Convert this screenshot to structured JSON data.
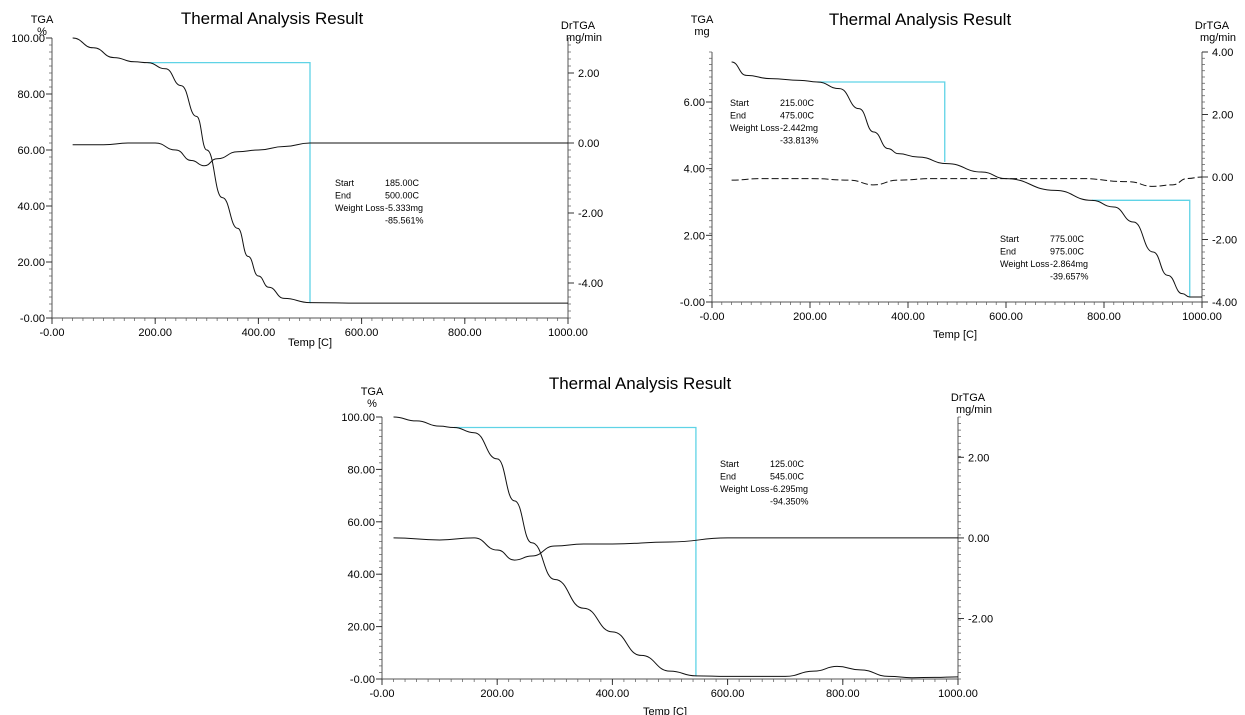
{
  "chart_data": [
    {
      "type": "line",
      "title": "Thermal Analysis Result",
      "ylabel_left": [
        "TGA",
        "%"
      ],
      "ylabel_right": [
        "DrTGA",
        "mg/min"
      ],
      "xlabel": "Temp  [C]",
      "xlim": [
        0,
        1000
      ],
      "ylim_left": [
        0,
        100
      ],
      "ylim_right": [
        -5,
        3
      ],
      "x_ticks": [
        "-0.00",
        "200.00",
        "400.00",
        "600.00",
        "800.00",
        "1000.00"
      ],
      "x_tick_values": [
        0,
        200,
        400,
        600,
        800,
        1000
      ],
      "y_left_ticks": [
        "-0.00",
        "20.00",
        "40.00",
        "60.00",
        "80.00",
        "100.00"
      ],
      "y_left_tick_values": [
        0,
        20,
        40,
        60,
        80,
        100
      ],
      "y_right_ticks": [
        "-4.00",
        "-2.00",
        "0.00",
        "2.00"
      ],
      "y_right_tick_values": [
        -4,
        -2,
        0,
        2
      ],
      "series": [
        {
          "axis": "left",
          "style": "solid",
          "x": [
            40,
            80,
            120,
            160,
            185,
            220,
            250,
            280,
            300,
            330,
            360,
            380,
            400,
            420,
            450,
            500,
            600,
            800,
            1000
          ],
          "y": [
            100,
            96.5,
            93,
            91.5,
            91.2,
            89,
            83,
            72,
            60,
            43,
            32,
            22,
            15,
            11,
            7,
            5.5,
            5.3,
            5.3,
            5.3
          ]
        },
        {
          "axis": "right",
          "style": "solid",
          "x": [
            40,
            100,
            150,
            200,
            240,
            270,
            295,
            320,
            360,
            400,
            450,
            500,
            600,
            800,
            1000
          ],
          "y": [
            -0.05,
            -0.05,
            0,
            0,
            -0.2,
            -0.5,
            -0.65,
            -0.45,
            -0.25,
            -0.2,
            -0.1,
            0,
            0,
            0,
            0
          ]
        }
      ],
      "step_box": {
        "start_x": 185,
        "end_x": 500,
        "top_y": 91.2,
        "bottom_y": 5.5
      },
      "annotation": {
        "x": 340,
        "y": 53,
        "rows": [
          {
            "label": "Start",
            "value": "185.00C"
          },
          {
            "label": "End",
            "value": "500.00C"
          },
          {
            "label": "Weight Loss",
            "value": "-5.333mg"
          },
          {
            "label": "",
            "value": "-85.561%"
          }
        ]
      }
    },
    {
      "type": "line",
      "title": "Thermal Analysis Result",
      "ylabel_left": [
        "TGA",
        "mg"
      ],
      "ylabel_right": [
        "DrTGA",
        "mg/min"
      ],
      "xlabel": "Temp  [C]",
      "xlim": [
        0,
        1000
      ],
      "ylim_left": [
        0,
        7.5
      ],
      "ylim_right": [
        -4,
        4
      ],
      "x_ticks": [
        "-0.00",
        "200.00",
        "400.00",
        "600.00",
        "800.00",
        "1000.00"
      ],
      "x_tick_values": [
        0,
        200,
        400,
        600,
        800,
        1000
      ],
      "y_left_ticks": [
        "-0.00",
        "2.00",
        "4.00",
        "6.00"
      ],
      "y_left_tick_values": [
        0,
        2,
        4,
        6
      ],
      "y_right_ticks": [
        "-4.00",
        "-2.00",
        "0.00",
        "2.00",
        "4.00"
      ],
      "y_right_tick_values": [
        -4,
        -2,
        0,
        2,
        4
      ],
      "series": [
        {
          "axis": "left",
          "style": "solid",
          "x": [
            40,
            70,
            120,
            180,
            215,
            260,
            300,
            330,
            360,
            380,
            420,
            480,
            550,
            600,
            700,
            775,
            820,
            860,
            900,
            930,
            960,
            975,
            1000
          ],
          "y": [
            7.2,
            6.8,
            6.7,
            6.65,
            6.6,
            6.4,
            5.8,
            5.1,
            4.6,
            4.45,
            4.35,
            4.15,
            3.9,
            3.7,
            3.35,
            3.05,
            2.85,
            2.4,
            1.5,
            0.8,
            0.25,
            0.15,
            0.15
          ]
        },
        {
          "axis": "right",
          "style": "dashed",
          "x": [
            40,
            100,
            200,
            280,
            330,
            380,
            450,
            550,
            650,
            750,
            850,
            900,
            940,
            970,
            1000
          ],
          "y": [
            -0.1,
            -0.05,
            -0.05,
            -0.1,
            -0.25,
            -0.1,
            -0.05,
            -0.05,
            -0.05,
            -0.05,
            -0.15,
            -0.3,
            -0.25,
            -0.05,
            0
          ]
        }
      ],
      "step_box": {
        "start_x": 215,
        "end_x": 475,
        "top_y": 6.6,
        "bottom_y": 4.2,
        "open_bottom": true
      },
      "step_box_2": {
        "start_x": 775,
        "end_x": 975,
        "top_y": 3.05,
        "bottom_y": 0.15
      },
      "annotation": {
        "x": 0,
        "y": 6.1,
        "rows": [
          {
            "label": "Start",
            "value": "215.00C"
          },
          {
            "label": "End",
            "value": "475.00C"
          },
          {
            "label": "Weight Loss",
            "value": "-2.442mg"
          },
          {
            "label": "",
            "value": "-33.813%"
          }
        ]
      },
      "annotation_2": {
        "x": 790,
        "y": 1.85,
        "rows": [
          {
            "label": "Start",
            "value": "775.00C"
          },
          {
            "label": "End",
            "value": "975.00C"
          },
          {
            "label": "Weight Loss",
            "value": "-2.864mg"
          },
          {
            "label": "",
            "value": "-39.657%"
          }
        ]
      }
    },
    {
      "type": "line",
      "title": "Thermal Analysis Result",
      "ylabel_left": [
        "TGA",
        "%"
      ],
      "ylabel_right": [
        "DrTGA",
        "mg/min"
      ],
      "xlabel": "Temp  [C]",
      "xlim": [
        0,
        1000
      ],
      "ylim_left": [
        0,
        100
      ],
      "ylim_right": [
        -3.5,
        3
      ],
      "x_ticks": [
        "-0.00",
        "200.00",
        "400.00",
        "600.00",
        "800.00",
        "1000.00"
      ],
      "x_tick_values": [
        0,
        200,
        400,
        600,
        800,
        1000
      ],
      "y_left_ticks": [
        "-0.00",
        "20.00",
        "40.00",
        "60.00",
        "80.00",
        "100.00"
      ],
      "y_left_tick_values": [
        0,
        20,
        40,
        60,
        80,
        100
      ],
      "y_right_ticks": [
        "-2.00",
        "0.00",
        "2.00"
      ],
      "y_right_tick_values": [
        -2,
        0,
        2
      ],
      "series": [
        {
          "axis": "left",
          "style": "solid",
          "x": [
            20,
            60,
            100,
            125,
            160,
            200,
            230,
            260,
            300,
            350,
            400,
            450,
            500,
            545,
            600,
            700,
            750,
            790,
            830,
            880,
            920,
            960,
            1000
          ],
          "y": [
            100,
            98.5,
            96.5,
            96,
            94,
            84,
            68,
            52,
            38,
            27,
            18,
            9,
            3,
            1.2,
            1,
            1,
            3,
            4.8,
            3.5,
            1,
            0.5,
            0.6,
            0.8
          ]
        },
        {
          "axis": "right",
          "style": "solid",
          "x": [
            20,
            100,
            160,
            200,
            230,
            260,
            300,
            350,
            400,
            500,
            600,
            800,
            1000
          ],
          "y": [
            0,
            -0.05,
            0,
            -0.3,
            -0.55,
            -0.45,
            -0.2,
            -0.15,
            -0.15,
            -0.1,
            0,
            0,
            0
          ]
        }
      ],
      "step_box": {
        "start_x": 125,
        "end_x": 545,
        "top_y": 96,
        "bottom_y": 1.2
      },
      "annotation": {
        "x": 555,
        "y": 82,
        "rows": [
          {
            "label": "Start",
            "value": "125.00C"
          },
          {
            "label": "End",
            "value": "545.00C"
          },
          {
            "label": "Weight Loss",
            "value": "-6.295mg"
          },
          {
            "label": "",
            "value": "-94.350%"
          }
        ]
      }
    }
  ]
}
